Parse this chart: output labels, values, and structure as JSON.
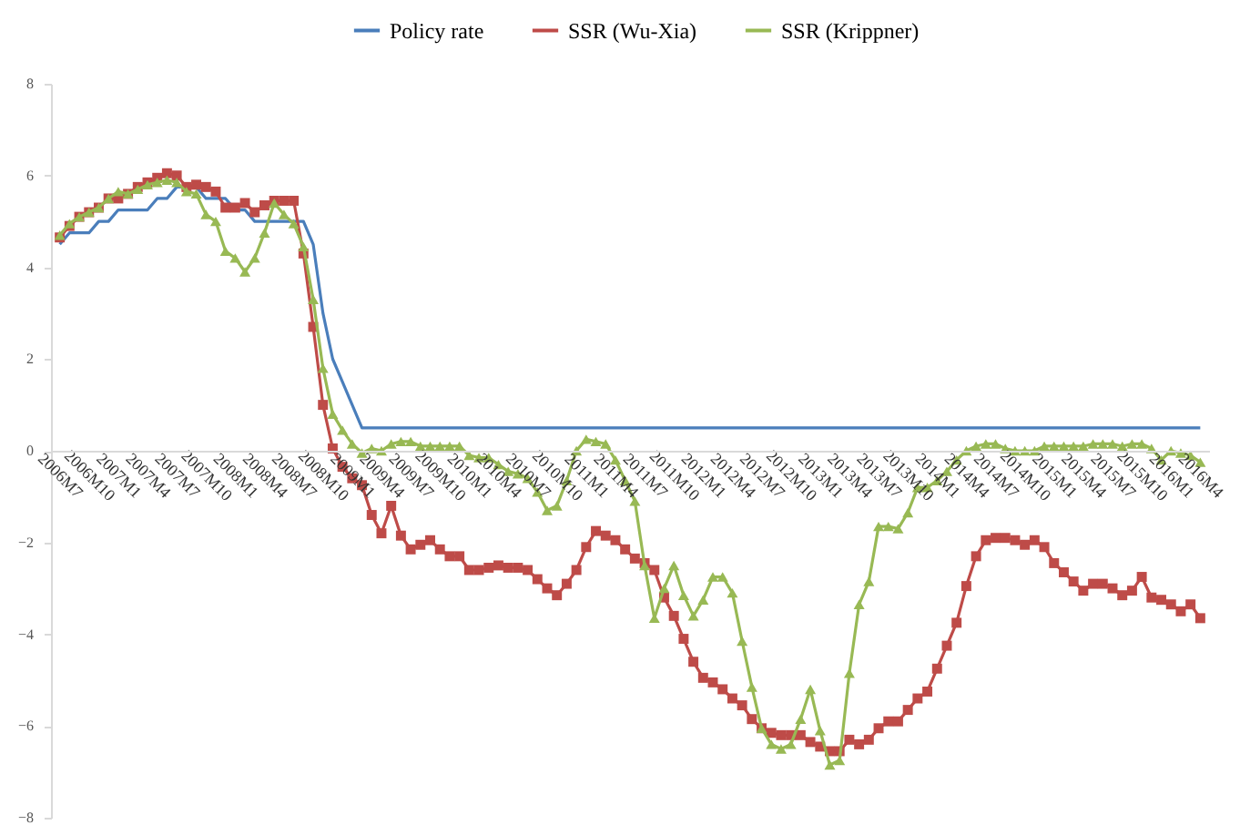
{
  "chart_data": {
    "type": "line",
    "categories": [
      "2006M7",
      null,
      null,
      "2006M10",
      null,
      null,
      "2007M1",
      null,
      null,
      "2007M4",
      null,
      null,
      "2007M7",
      null,
      null,
      "2007M10",
      null,
      null,
      "2008M1",
      null,
      null,
      "2008M4",
      null,
      null,
      "2008M7",
      null,
      null,
      "2008M10",
      null,
      null,
      "2009M1",
      null,
      null,
      "2009M4",
      null,
      null,
      "2009M7",
      null,
      null,
      "2009M10",
      null,
      null,
      "2010M1",
      null,
      null,
      "2010M4",
      null,
      null,
      "2010M7",
      null,
      null,
      "2010M10",
      null,
      null,
      "2011M1",
      null,
      null,
      "2011M4",
      null,
      null,
      "2011M7",
      null,
      null,
      "2011M10",
      null,
      null,
      "2012M1",
      null,
      null,
      "2012M4",
      null,
      null,
      "2012M7",
      null,
      null,
      "2012M10",
      null,
      null,
      "2013M1",
      null,
      null,
      "2013M4",
      null,
      null,
      "2013M7",
      null,
      null,
      "2013M10",
      null,
      null,
      "2014M1",
      null,
      null,
      "2014M4",
      null,
      null,
      "2014M7",
      null,
      null,
      "2014M10",
      null,
      null,
      "2015M1",
      null,
      null,
      "2015M4",
      null,
      null,
      "2015M7",
      null,
      null,
      "2015M10",
      null,
      null,
      "2016M1",
      null,
      null,
      "2016M4"
    ],
    "series": [
      {
        "name": "Policy rate",
        "color": "#4a7ebb",
        "marker": "none",
        "values": [
          4.5,
          4.75,
          4.75,
          4.75,
          5.0,
          5.0,
          5.25,
          5.25,
          5.25,
          5.25,
          5.5,
          5.5,
          5.75,
          5.75,
          5.75,
          5.5,
          5.5,
          5.5,
          5.25,
          5.25,
          5.0,
          5.0,
          5.0,
          5.0,
          5.0,
          5.0,
          4.5,
          3.0,
          2.0,
          1.5,
          1.0,
          0.5,
          0.5,
          0.5,
          0.5,
          0.5,
          0.5,
          0.5,
          0.5,
          0.5,
          0.5,
          0.5,
          0.5,
          0.5,
          0.5,
          0.5,
          0.5,
          0.5,
          0.5,
          0.5,
          0.5,
          0.5,
          0.5,
          0.5,
          0.5,
          0.5,
          0.5,
          0.5,
          0.5,
          0.5,
          0.5,
          0.5,
          0.5,
          0.5,
          0.5,
          0.5,
          0.5,
          0.5,
          0.5,
          0.5,
          0.5,
          0.5,
          0.5,
          0.5,
          0.5,
          0.5,
          0.5,
          0.5,
          0.5,
          0.5,
          0.5,
          0.5,
          0.5,
          0.5,
          0.5,
          0.5,
          0.5,
          0.5,
          0.5,
          0.5,
          0.5,
          0.5,
          0.5,
          0.5,
          0.5,
          0.5,
          0.5,
          0.5,
          0.5,
          0.5,
          0.5,
          0.5,
          0.5,
          0.5,
          0.5,
          0.5,
          0.5,
          0.5,
          0.5,
          0.5,
          0.5,
          0.5,
          0.5,
          0.5,
          0.5,
          0.5,
          0.5,
          0.5
        ]
      },
      {
        "name": "SSR (Wu-Xia)",
        "color": "#be4b48",
        "marker": "square",
        "values": [
          4.65,
          4.9,
          5.1,
          5.2,
          5.3,
          5.5,
          5.5,
          5.6,
          5.75,
          5.85,
          5.95,
          6.05,
          6.0,
          5.75,
          5.8,
          5.75,
          5.65,
          5.3,
          5.3,
          5.4,
          5.2,
          5.35,
          5.45,
          5.45,
          5.45,
          4.3,
          2.7,
          1.0,
          0.05,
          -0.35,
          -0.6,
          -0.75,
          -1.4,
          -1.8,
          -1.2,
          -1.85,
          -2.15,
          -2.05,
          -1.95,
          -2.15,
          -2.3,
          -2.3,
          -2.6,
          -2.6,
          -2.55,
          -2.5,
          -2.55,
          -2.55,
          -2.6,
          -2.8,
          -3.0,
          -3.15,
          -2.9,
          -2.6,
          -2.1,
          -1.75,
          -1.85,
          -1.95,
          -2.15,
          -2.35,
          -2.45,
          -2.6,
          -3.2,
          -3.6,
          -4.1,
          -4.6,
          -4.95,
          -5.05,
          -5.2,
          -5.4,
          -5.55,
          -5.85,
          -6.05,
          -6.15,
          -6.2,
          -6.2,
          -6.2,
          -6.35,
          -6.45,
          -6.55,
          -6.55,
          -6.3,
          -6.4,
          -6.3,
          -6.05,
          -5.9,
          -5.9,
          -5.65,
          -5.4,
          -5.25,
          -4.75,
          -4.25,
          -3.75,
          -2.95,
          -2.3,
          -1.95,
          -1.9,
          -1.9,
          -1.95,
          -2.05,
          -1.95,
          -2.1,
          -2.45,
          -2.65,
          -2.85,
          -3.05,
          -2.9,
          -2.9,
          -3.0,
          -3.15,
          -3.05,
          -2.75,
          -3.2,
          -3.25,
          -3.35,
          -3.5,
          -3.35,
          -3.65
        ]
      },
      {
        "name": "SSR (Krippner)",
        "color": "#98b954",
        "marker": "triangle",
        "values": [
          4.7,
          4.95,
          5.1,
          5.2,
          5.3,
          5.5,
          5.65,
          5.6,
          5.7,
          5.8,
          5.85,
          5.9,
          5.85,
          5.65,
          5.6,
          5.15,
          5.0,
          4.35,
          4.2,
          3.9,
          4.2,
          4.75,
          5.4,
          5.15,
          4.95,
          4.45,
          3.3,
          1.8,
          0.8,
          0.45,
          0.15,
          -0.05,
          0.05,
          0.0,
          0.15,
          0.2,
          0.2,
          0.1,
          0.1,
          0.1,
          0.1,
          0.1,
          -0.1,
          -0.15,
          -0.15,
          -0.3,
          -0.45,
          -0.5,
          -0.6,
          -0.9,
          -1.3,
          -1.2,
          -0.65,
          0.0,
          0.25,
          0.2,
          0.15,
          -0.2,
          -0.65,
          -1.1,
          -2.5,
          -3.65,
          -3.0,
          -2.5,
          -3.15,
          -3.6,
          -3.25,
          -2.75,
          -2.75,
          -3.1,
          -4.15,
          -5.15,
          -6.05,
          -6.4,
          -6.5,
          -6.4,
          -5.85,
          -5.2,
          -6.1,
          -6.85,
          -6.75,
          -4.85,
          -3.35,
          -2.85,
          -1.65,
          -1.65,
          -1.7,
          -1.35,
          -0.8,
          -0.8,
          -0.65,
          -0.45,
          -0.2,
          0.0,
          0.1,
          0.15,
          0.15,
          0.05,
          0.0,
          0.0,
          0.0,
          0.1,
          0.1,
          0.1,
          0.1,
          0.1,
          0.15,
          0.15,
          0.15,
          0.1,
          0.15,
          0.15,
          0.05,
          -0.2,
          0.0,
          -0.05,
          -0.1,
          -0.25
        ]
      }
    ],
    "ylim": [
      -8,
      8
    ],
    "yticks": [
      -8,
      -6,
      -4,
      -2,
      0,
      2,
      4,
      6,
      8
    ],
    "grid": false,
    "legend": "top"
  }
}
